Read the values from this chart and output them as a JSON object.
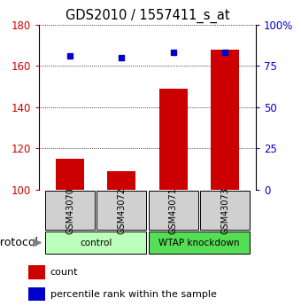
{
  "title": "GDS2010 / 1557411_s_at",
  "samples": [
    "GSM43070",
    "GSM43072",
    "GSM43071",
    "GSM43073"
  ],
  "counts": [
    115,
    109,
    149,
    168
  ],
  "percentiles": [
    81,
    80,
    83,
    83
  ],
  "ylim_left": [
    100,
    180
  ],
  "ylim_right": [
    0,
    100
  ],
  "yticks_left": [
    100,
    120,
    140,
    160,
    180
  ],
  "yticks_right": [
    0,
    25,
    50,
    75,
    100
  ],
  "yticklabels_right": [
    "0",
    "25",
    "50",
    "75",
    "100%"
  ],
  "bar_color": "#cc0000",
  "dot_color": "#0000cc",
  "bar_width": 0.55,
  "groups": [
    {
      "label": "control",
      "indices": [
        0,
        1
      ],
      "color": "#bbffbb"
    },
    {
      "label": "WTAP knockdown",
      "indices": [
        2,
        3
      ],
      "color": "#55dd55"
    }
  ],
  "sample_box_color": "#d0d0d0",
  "left_tick_color": "#cc0000",
  "right_tick_color": "#0000cc",
  "protocol_label": "protocol",
  "legend_items": [
    {
      "color": "#cc0000",
      "label": "count"
    },
    {
      "color": "#0000cc",
      "label": "percentile rank within the sample"
    }
  ]
}
